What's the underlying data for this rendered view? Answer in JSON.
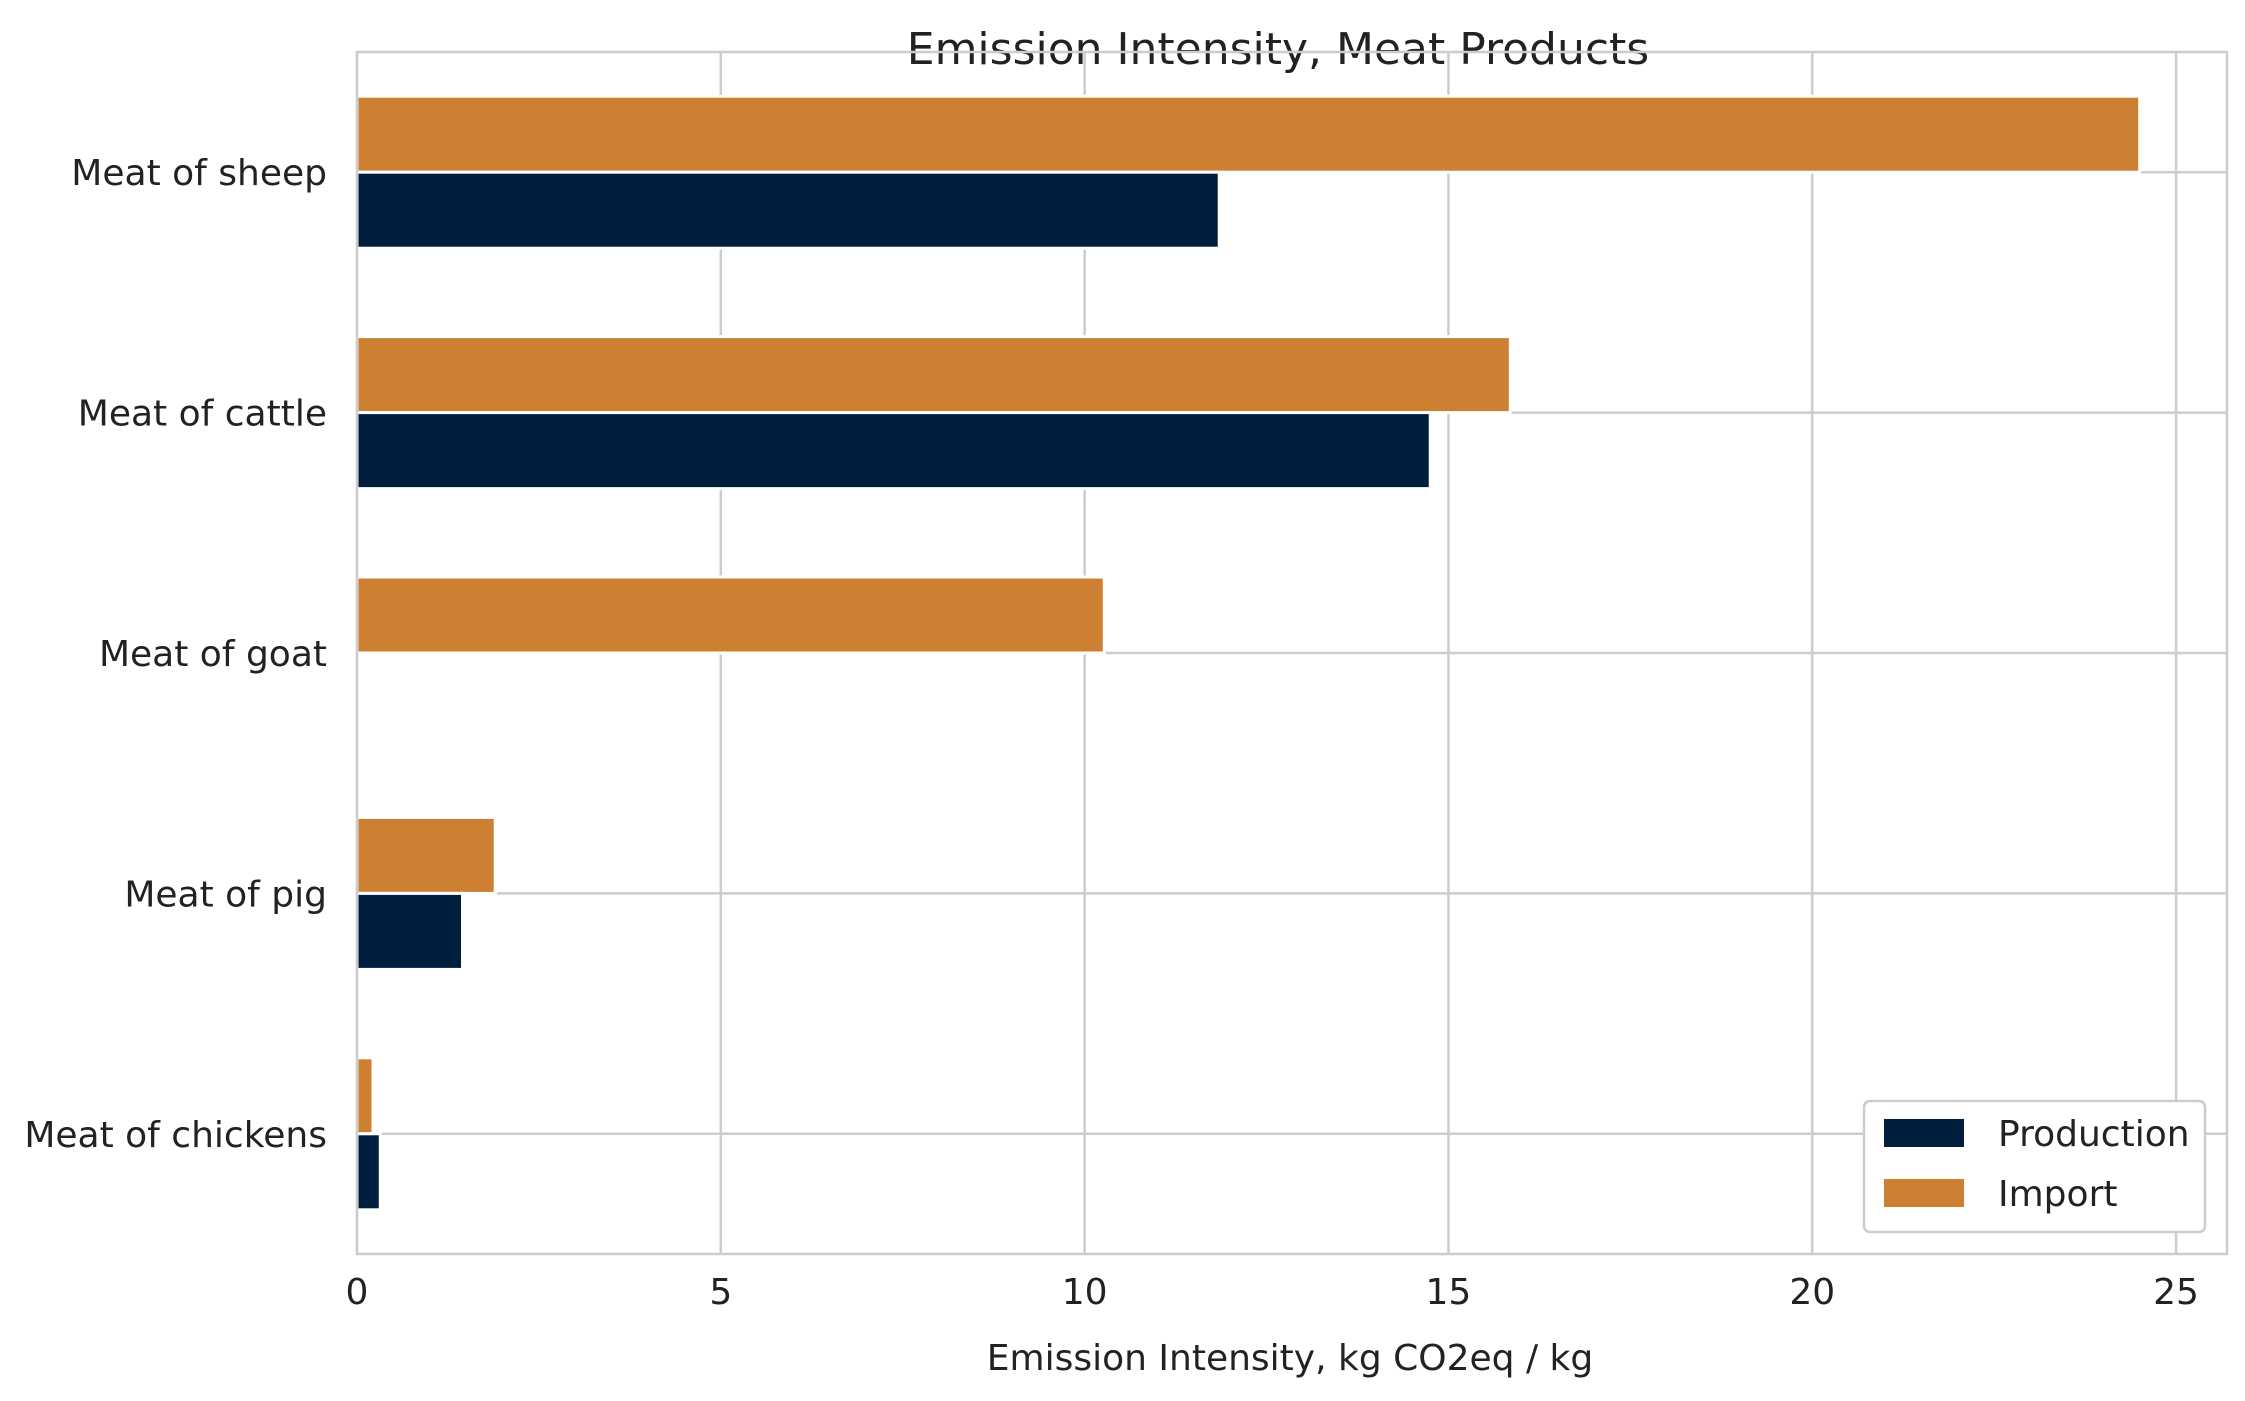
{
  "chart_data": {
    "type": "bar",
    "orientation": "horizontal",
    "title": "Emission Intensity, Meat Products",
    "xlabel": "Emission Intensity, kg CO2eq / kg",
    "ylabel": "",
    "xlim": [
      0,
      25.7
    ],
    "xticks": [
      0,
      5,
      10,
      15,
      20,
      25
    ],
    "grid": true,
    "legend_position": "bottom-right",
    "categories": [
      "Meat of sheep",
      "Meat of cattle",
      "Meat of goat",
      "Meat of pig",
      "Meat of chickens"
    ],
    "series": [
      {
        "name": "Production",
        "color": "#001f3f",
        "values": [
          11.85,
          14.75,
          null,
          1.45,
          0.32
        ]
      },
      {
        "name": "Import",
        "color": "#cd7f32",
        "values": [
          24.5,
          15.85,
          10.27,
          1.9,
          0.22
        ]
      }
    ]
  }
}
